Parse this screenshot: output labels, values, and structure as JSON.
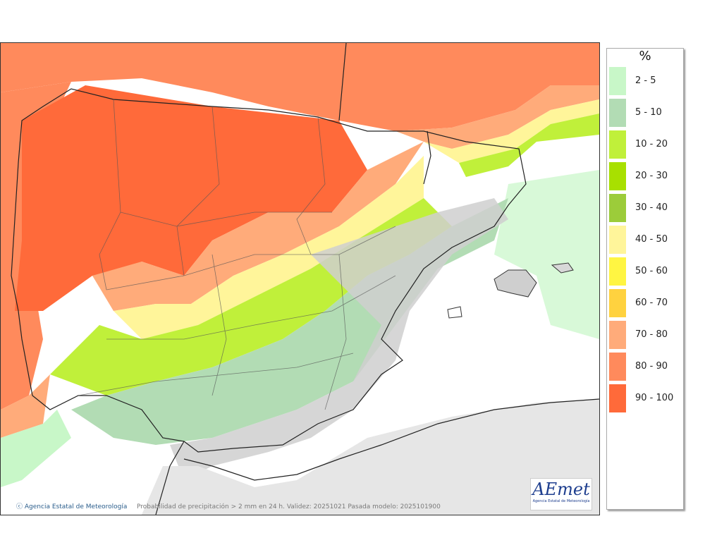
{
  "map": {
    "credit": "Agencia Estatal de Meteorología",
    "caption": "Probabilidad de precipitación > 2 mm en 24 h. Validez: 20251021 Pasada modelo: 2025101900",
    "logo": {
      "word": "AEmet",
      "sub": "Agencia Estatal de Meteorología"
    },
    "copyright_icon": "copyright-icon"
  },
  "legend": {
    "unit": "%",
    "items": [
      {
        "label": "2 - 5",
        "color": "#c8f7c8"
      },
      {
        "label": "5 - 10",
        "color": "#b2dcb4"
      },
      {
        "label": "10 - 20",
        "color": "#c0f03a"
      },
      {
        "label": "20 - 30",
        "color": "#a8e000"
      },
      {
        "label": "30 - 40",
        "color": "#9ccc3a"
      },
      {
        "label": "40 - 50",
        "color": "#fff59a"
      },
      {
        "label": "50 - 60",
        "color": "#fff542"
      },
      {
        "label": "60 - 70",
        "color": "#ffd23f"
      },
      {
        "label": "70 - 80",
        "color": "#ffab7a"
      },
      {
        "label": "80 - 90",
        "color": "#ff8a5c"
      },
      {
        "label": "90 - 100",
        "color": "#ff6a3a"
      }
    ]
  }
}
